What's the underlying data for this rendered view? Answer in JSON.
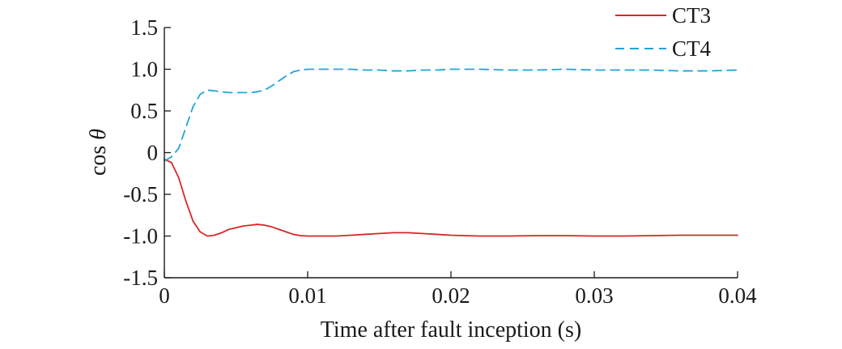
{
  "chart_data": {
    "type": "line",
    "title": "",
    "xlabel": "Time after fault inception (s)",
    "ylabel": "cos θ",
    "ylabel_parts": {
      "prefix": "cos ",
      "symbol": "θ"
    },
    "xlim": [
      0,
      0.04
    ],
    "ylim": [
      -1.5,
      1.5
    ],
    "x_ticks": [
      0,
      0.01,
      0.02,
      0.03,
      0.04
    ],
    "x_tick_labels": [
      "0",
      "0.01",
      "0.02",
      "0.03",
      "0.04"
    ],
    "y_ticks": [
      1.5,
      1.0,
      0.5,
      0,
      -0.5,
      -1.0,
      -1.5
    ],
    "y_tick_labels": [
      "1.5",
      "1.0",
      "0.5",
      "0",
      "-0.5",
      "-1.0",
      "-1.5"
    ],
    "grid": false,
    "legend": {
      "position": "top-right"
    },
    "series": [
      {
        "name": "CT3",
        "color": "#d62728",
        "style": "solid",
        "x": [
          0,
          0.0005,
          0.001,
          0.0015,
          0.002,
          0.0025,
          0.003,
          0.0035,
          0.004,
          0.0045,
          0.005,
          0.0055,
          0.006,
          0.0065,
          0.007,
          0.0075,
          0.008,
          0.0085,
          0.009,
          0.0095,
          0.01,
          0.011,
          0.012,
          0.013,
          0.014,
          0.015,
          0.016,
          0.017,
          0.018,
          0.019,
          0.02,
          0.022,
          0.024,
          0.026,
          0.028,
          0.03,
          0.032,
          0.034,
          0.036,
          0.038,
          0.04
        ],
        "y": [
          -0.08,
          -0.12,
          -0.3,
          -0.58,
          -0.82,
          -0.95,
          -1.0,
          -0.99,
          -0.96,
          -0.92,
          -0.9,
          -0.88,
          -0.87,
          -0.86,
          -0.87,
          -0.89,
          -0.92,
          -0.95,
          -0.98,
          -0.995,
          -1.0,
          -1.0,
          -1.0,
          -0.99,
          -0.98,
          -0.97,
          -0.96,
          -0.96,
          -0.97,
          -0.98,
          -0.99,
          -1.0,
          -1.0,
          -0.995,
          -0.995,
          -1.0,
          -1.0,
          -0.995,
          -0.99,
          -0.99,
          -0.99
        ]
      },
      {
        "name": "CT4",
        "color": "#1fa6d6",
        "style": "dashed",
        "x": [
          0,
          0.0005,
          0.001,
          0.0015,
          0.002,
          0.0025,
          0.003,
          0.0035,
          0.004,
          0.0045,
          0.005,
          0.0055,
          0.006,
          0.0065,
          0.007,
          0.0075,
          0.008,
          0.0085,
          0.009,
          0.0095,
          0.01,
          0.011,
          0.012,
          0.013,
          0.014,
          0.015,
          0.016,
          0.017,
          0.018,
          0.019,
          0.02,
          0.022,
          0.024,
          0.026,
          0.028,
          0.03,
          0.032,
          0.034,
          0.036,
          0.038,
          0.04
        ],
        "y": [
          -0.1,
          -0.05,
          0.05,
          0.3,
          0.55,
          0.7,
          0.75,
          0.74,
          0.73,
          0.72,
          0.72,
          0.72,
          0.72,
          0.73,
          0.75,
          0.8,
          0.86,
          0.92,
          0.97,
          0.99,
          1.0,
          1.0,
          1.0,
          1.0,
          0.99,
          0.99,
          0.98,
          0.98,
          0.99,
          0.99,
          1.0,
          1.0,
          0.99,
          0.99,
          1.0,
          0.99,
          0.99,
          0.99,
          0.98,
          0.98,
          0.99
        ]
      }
    ]
  }
}
